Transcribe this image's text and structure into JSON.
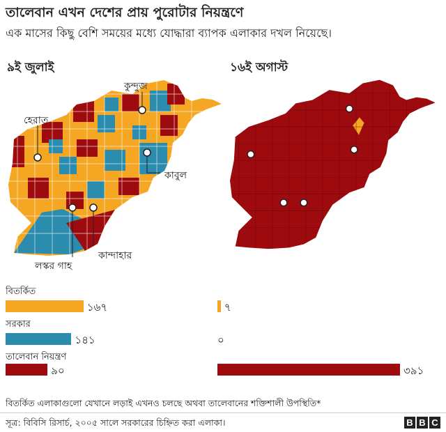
{
  "title": "তালেবান এখন দেশের প্রায় পুরোটার নিয়ন্ত্রণে",
  "subtitle": "এক মাসের কিছু বেশি সময়ের মধ্যে যোদ্ধারা ব্যাপক এলাকার দখল নিয়েছে।",
  "colors": {
    "contested": "#f5a623",
    "government": "#2b8cae",
    "taliban": "#9e0b0f",
    "lines": "#ffffff"
  },
  "maps": [
    {
      "date_label": "৯ই জুলাই",
      "cities": [
        "কুন্দুজ",
        "হেরাত",
        "কাবুল",
        "লস্কর গাহ",
        "কান্দাহার"
      ]
    },
    {
      "date_label": "১৬ই অগাস্ট"
    }
  ],
  "legend": {
    "categories": [
      {
        "label": "বিতর্কিত",
        "color": "#f5a623",
        "left_value": "১৬৭",
        "right_value": "৭"
      },
      {
        "label": "সরকার",
        "color": "#2b8cae",
        "left_value": "১৪১",
        "right_value": "০"
      },
      {
        "label": "তালেবান নিয়ন্ত্রণ",
        "color": "#9e0b0f",
        "left_value": "৯০",
        "right_value": "৩৯১"
      }
    ]
  },
  "chart_data": {
    "type": "bar",
    "categories": [
      "বিতর্কিত",
      "সরকার",
      "তালেবান নিয়ন্ত্রণ"
    ],
    "series": [
      {
        "name": "৯ই জুলাই",
        "values": [
          167,
          141,
          90
        ]
      },
      {
        "name": "১৬ই অগাস্ট",
        "values": [
          7,
          0,
          391
        ]
      }
    ]
  },
  "footnote": "বিতর্কিত এলাকাগুলো যেখানে লড়াই এখনও চলছে অথবা তালেবানের শক্তিশালী উপস্থিতি*",
  "source": "সূত্র: বিবিসি রিসার্চ, ২০০৫ সালে সরকারের চিহ্নিত করা এলাকা।",
  "brand": [
    "B",
    "B",
    "C"
  ]
}
